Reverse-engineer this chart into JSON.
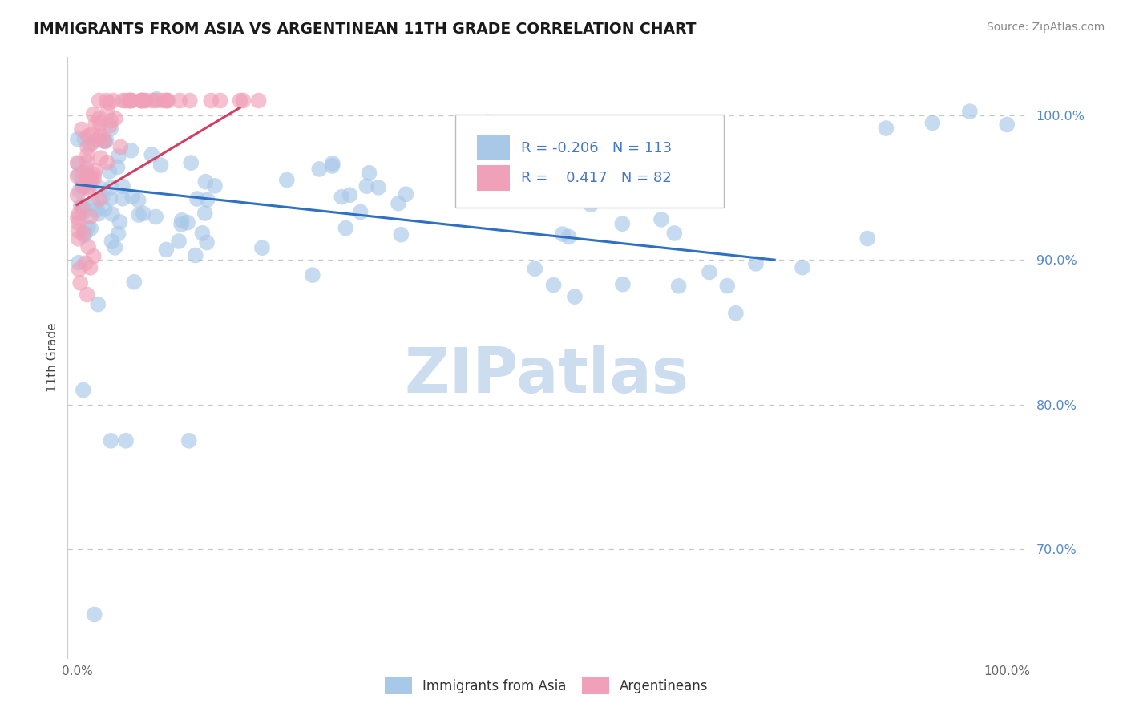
{
  "title": "IMMIGRANTS FROM ASIA VS ARGENTINEAN 11TH GRADE CORRELATION CHART",
  "source": "Source: ZipAtlas.com",
  "ylabel": "11th Grade",
  "ylim": [
    0.625,
    1.04
  ],
  "xlim": [
    -0.01,
    1.02
  ],
  "legend_R_blue": "-0.206",
  "legend_N_blue": "113",
  "legend_R_pink": "0.417",
  "legend_N_pink": "82",
  "blue_color": "#a8c8e8",
  "pink_color": "#f0a0b8",
  "blue_line_color": "#3070c0",
  "pink_line_color": "#d04060",
  "watermark_text": "ZIPatlas",
  "watermark_color": "#ccddf0",
  "ytick_vals": [
    0.7,
    0.8,
    0.9,
    1.0
  ],
  "ytick_labels": [
    "70.0%",
    "80.0%",
    "90.0%",
    "100.0%"
  ],
  "blue_line_x0": 0.0,
  "blue_line_y0": 0.952,
  "blue_line_x1": 0.75,
  "blue_line_y1": 0.9,
  "pink_line_x0": 0.0,
  "pink_line_y0": 0.938,
  "pink_line_x1": 0.175,
  "pink_line_y1": 1.005
}
